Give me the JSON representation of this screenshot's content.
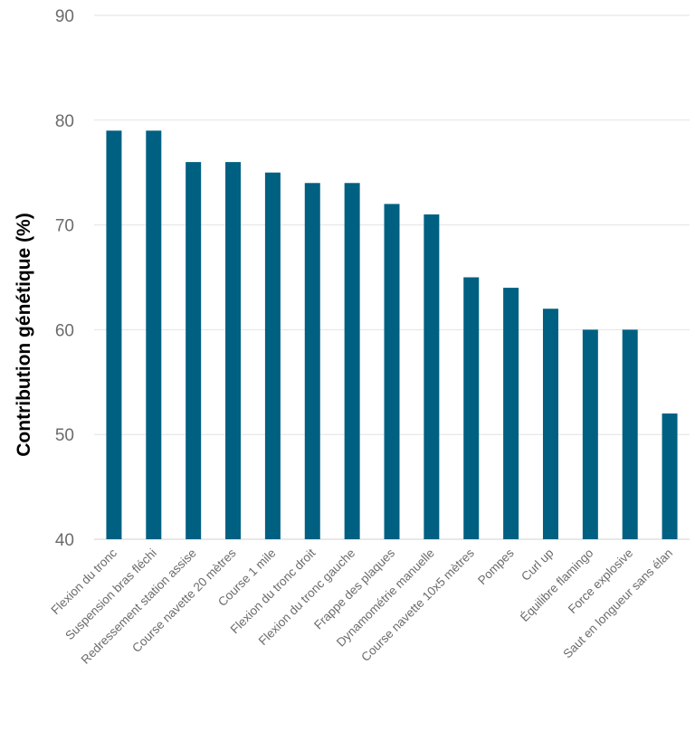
{
  "chart_data": {
    "type": "bar",
    "ylabel": "Contribution génétique (%)",
    "xlabel": "",
    "title": "",
    "ylim": [
      40,
      90
    ],
    "yticks": [
      40,
      50,
      60,
      70,
      80,
      90
    ],
    "grid": true,
    "bar_color": "#006082",
    "categories": [
      "Flexion du tronc",
      "Suspension bras fléchi",
      "Redressement station assise",
      "Course navette 20 mètres",
      "Course 1 mile",
      "Flexion du tronc droit",
      "Flexion du tronc gauche",
      "Frappe des plaques",
      "Dynamométrie manuelle",
      "Course navette 10x5 mètres",
      "Pompes",
      "Curl up",
      "Équilibre flamingo",
      "Force explosive",
      "Saut en longueur sans élan"
    ],
    "values": [
      79,
      79,
      76,
      76,
      75,
      74,
      74,
      72,
      71,
      65,
      64,
      62,
      60,
      60,
      52
    ]
  }
}
